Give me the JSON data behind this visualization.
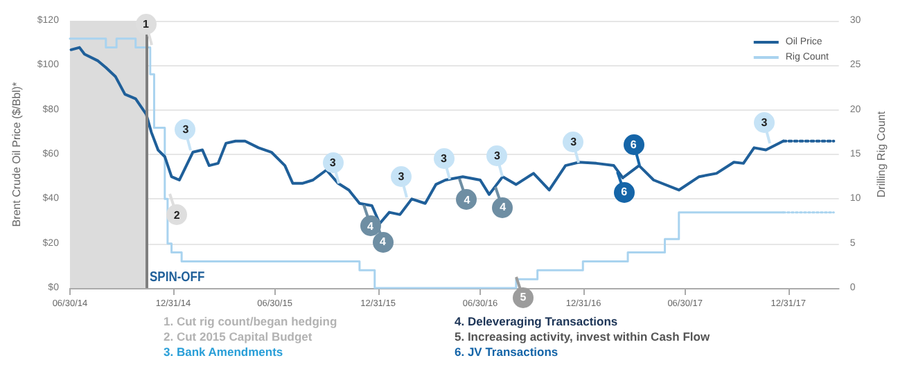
{
  "chart_data": {
    "type": "line",
    "ylabel": "Brent Crude Oil Price ($/Bbl)*",
    "y2label": "Drilling Rig Count",
    "xlim": [
      "2014-06-30",
      "2018-03-31"
    ],
    "xticks": [
      {
        "value": "2014-06-30",
        "label": "06/30/14"
      },
      {
        "value": "2014-12-31",
        "label": "12/31/14"
      },
      {
        "value": "2015-06-30",
        "label": "06/30/15"
      },
      {
        "value": "2015-12-31",
        "label": "12/31/15"
      },
      {
        "value": "2016-06-30",
        "label": "06/30/16"
      },
      {
        "value": "2016-12-31",
        "label": "12/31/16"
      },
      {
        "value": "2017-06-30",
        "label": "06/30/17"
      },
      {
        "value": "2017-12-31",
        "label": "12/31/17"
      }
    ],
    "ylim": [
      0,
      120
    ],
    "yticks": [
      {
        "value": 0,
        "label": "$0"
      },
      {
        "value": 20,
        "label": "$20"
      },
      {
        "value": 40,
        "label": "$40"
      },
      {
        "value": 60,
        "label": "$60"
      },
      {
        "value": 80,
        "label": "$80"
      },
      {
        "value": 100,
        "label": "$100"
      },
      {
        "value": 120,
        "label": "$120"
      }
    ],
    "y2lim": [
      0,
      30
    ],
    "y2ticks": [
      0,
      5,
      10,
      15,
      20,
      25,
      30
    ],
    "grid": "y",
    "legend": "top right",
    "marker": "none",
    "series": [
      {
        "name": "Oil Price",
        "color": "#1f5f99",
        "x": [
          "2014-07-02",
          "2014-07-17",
          "2014-07-26",
          "2014-08-19",
          "2014-09-02",
          "2014-09-19",
          "2014-10-06",
          "2014-10-25",
          "2014-11-13",
          "2014-11-22",
          "2014-12-04",
          "2014-12-16",
          "2014-12-28",
          "2015-01-11",
          "2015-02-04",
          "2015-02-21",
          "2015-03-05",
          "2015-03-21",
          "2015-04-04",
          "2015-04-21",
          "2015-05-08",
          "2015-06-01",
          "2015-06-24",
          "2015-07-18",
          "2015-08-01",
          "2015-08-18",
          "2015-09-06",
          "2015-09-30",
          "2015-10-21",
          "2015-11-09",
          "2015-11-28",
          "2015-12-20",
          "2016-01-03",
          "2016-01-20",
          "2016-02-08",
          "2016-02-29",
          "2016-03-24",
          "2016-04-12",
          "2016-04-29",
          "2016-05-30",
          "2016-06-30",
          "2016-07-16",
          "2016-08-09",
          "2016-09-02",
          "2016-10-03",
          "2016-10-31",
          "2016-11-29",
          "2016-12-23",
          "2017-01-23",
          "2017-02-23",
          "2017-03-11",
          "2017-04-09",
          "2017-05-05",
          "2017-06-19",
          "2017-07-25",
          "2017-08-25",
          "2017-09-25",
          "2017-10-12",
          "2017-10-31",
          "2017-11-21",
          "2017-12-22"
        ],
        "values": [
          107,
          108,
          105,
          102,
          99,
          95,
          87,
          85,
          78,
          70,
          62,
          59,
          50,
          48.5,
          61,
          62,
          55,
          56,
          65,
          66,
          66,
          63,
          61,
          55,
          47,
          47,
          48.5,
          53,
          47,
          44,
          38,
          37,
          29,
          34,
          33,
          40,
          38,
          46.5,
          48.5,
          50,
          48.5,
          42,
          50,
          46.5,
          51.5,
          44,
          55,
          56.5,
          56,
          55,
          49.5,
          55,
          48.5,
          44,
          50,
          51.5,
          56.5,
          56,
          63,
          62,
          66
        ]
      },
      {
        "color": "#1f5f99",
        "line_style": "dotted",
        "x": [
          "2017-12-22",
          "2018-03-22"
        ],
        "values": [
          66,
          66
        ]
      },
      {
        "type": "step",
        "name": "Rig Count",
        "color": "#a9d3ef",
        "axis": "y2",
        "x": [
          "2014-06-30",
          "2014-09-02",
          "2014-09-21",
          "2014-10-25",
          "2014-11-20",
          "2014-11-27",
          "2014-12-16",
          "2014-12-21",
          "2014-12-28",
          "2015-01-15",
          "2015-11-28",
          "2015-12-25",
          "2016-09-02",
          "2016-10-10",
          "2016-12-30",
          "2017-03-20",
          "2017-05-25",
          "2017-06-19",
          "2017-12-22"
        ],
        "values": [
          28,
          27,
          28,
          27,
          24,
          18,
          10,
          5,
          4,
          3,
          2,
          0,
          1,
          2,
          3,
          4,
          5.5,
          8.5,
          8.5
        ]
      },
      {
        "type": "line",
        "color": "#a9d3ef",
        "axis": "y2",
        "line_style": "dotted",
        "x": [
          "2017-12-22",
          "2018-03-22"
        ],
        "values": [
          8.5,
          8.5
        ]
      }
    ],
    "bands": [
      {
        "axis": "x",
        "from": "2014-06-30",
        "to": "2014-11-13",
        "color": "#dcdcdc"
      }
    ],
    "ref_lines": [
      {
        "axis": "x",
        "value": "2014-11-13",
        "label": "SPIN-OFF",
        "color": "#7f7f7f"
      }
    ],
    "annotations": [
      {
        "text": "1",
        "x": "2014-11-22",
        "y": 109
      },
      {
        "text": "2",
        "x": "2014-12-25",
        "y": 42
      },
      {
        "text": "3",
        "x": "2015-02-01",
        "y": 62
      },
      {
        "text": "3",
        "x": "2015-10-21",
        "y": 47
      },
      {
        "text": "4",
        "x": "2015-12-05",
        "y": 37
      },
      {
        "text": "4",
        "x": "2015-12-27",
        "y": 30
      },
      {
        "text": "3",
        "x": "2016-02-20",
        "y": 41
      },
      {
        "text": "3",
        "x": "2016-05-06",
        "y": 49
      },
      {
        "text": "4",
        "x": "2016-05-25",
        "y": 49
      },
      {
        "text": "3",
        "x": "2016-08-09",
        "y": 50
      },
      {
        "text": "4",
        "x": "2016-07-28",
        "y": 45.5
      },
      {
        "text": "5",
        "x": "2016-09-02",
        "y": 5
      },
      {
        "text": "3",
        "x": "2016-12-23",
        "y": 56.5
      },
      {
        "text": "6",
        "x": "2017-03-01",
        "y": 52.5
      },
      {
        "text": "6",
        "x": "2017-04-09",
        "y": 55
      },
      {
        "text": "3",
        "x": "2017-11-28",
        "y": 65
      },
      "1.  Cut rig count/began hedging",
      "2.  Cut 2015 Capital Budget",
      "3.  Bank Amendments",
      "4. Deleveraging Transactions",
      "5. Increasing activity, invest within Cash Flow",
      "6. JV Transactions"
    ]
  }
}
